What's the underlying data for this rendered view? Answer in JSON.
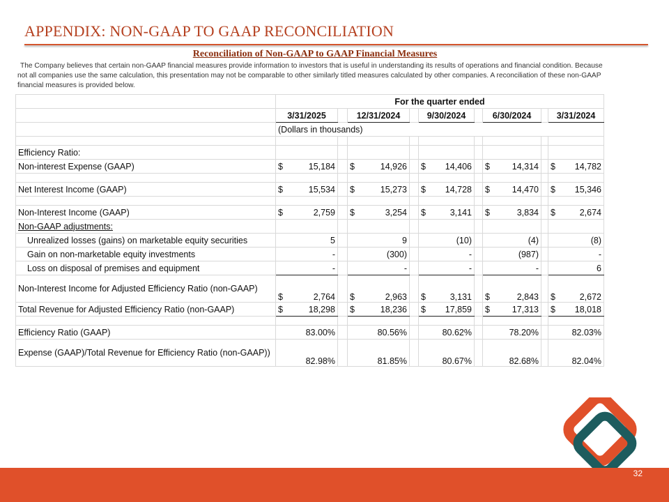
{
  "header": {
    "title": "APPENDIX: NON-GAAP TO GAAP RECONCILIATION"
  },
  "subtitle": "Reconciliation of Non-GAAP to GAAP Financial Measures",
  "intro": "The Company believes that certain non-GAAP financial measures provide information to investors that is useful in understanding its results of operations and financial condition.  Because not all companies use the same calculation, this presentation may not be comparable to other similarly titled measures calculated by other companies.  A reconciliation of these non-GAAP financial measures is provided below.",
  "table": {
    "period_header": "For the quarter ended",
    "columns": [
      "3/31/2025",
      "12/31/2024",
      "9/30/2024",
      "6/30/2024",
      "3/31/2024"
    ],
    "units": "(Dollars in thousands)",
    "rows": [
      {
        "label": "Efficiency Ratio:"
      },
      {
        "label": "Non-interest Expense (GAAP)",
        "currency": "$",
        "values": [
          "15,184",
          "14,926",
          "14,406",
          "14,314",
          "14,782"
        ]
      },
      {
        "label": "Net Interest Income (GAAP)",
        "currency": "$",
        "values": [
          "15,534",
          "15,273",
          "14,728",
          "14,470",
          "15,346"
        ]
      },
      {
        "label": "Non-Interest Income (GAAP)",
        "currency": "$",
        "values": [
          "2,759",
          "3,254",
          "3,141",
          "3,834",
          "2,674"
        ]
      },
      {
        "label": "Non-GAAP adjustments:"
      },
      {
        "label": "Unrealized losses (gains) on marketable equity securities",
        "values": [
          "5",
          "9",
          "(10)",
          "(4)",
          "(8)"
        ]
      },
      {
        "label": "Gain on non-marketable equity investments",
        "values": [
          "-",
          "(300)",
          "-",
          "(987)",
          "-"
        ]
      },
      {
        "label": "Loss on disposal of premises and equipment",
        "values": [
          "-",
          "-",
          "-",
          "-",
          "6"
        ]
      },
      {
        "label": "Non-Interest Income for Adjusted Efficiency Ratio (non-GAAP)",
        "currency": "$",
        "values": [
          "2,764",
          "2,963",
          "3,131",
          "2,843",
          "2,672"
        ]
      },
      {
        "label": "Total Revenue for Adjusted Efficiency Ratio (non-GAAP)",
        "currency": "$",
        "values": [
          "18,298",
          "18,236",
          "17,859",
          "17,313",
          "18,018"
        ]
      },
      {
        "label": "Efficiency Ratio (GAAP)",
        "values": [
          "83.00%",
          "80.56%",
          "80.62%",
          "78.20%",
          "82.03%"
        ]
      },
      {
        "label": "Expense (GAAP)/Total Revenue for Efficiency Ratio (non-GAAP))",
        "values": [
          "82.98%",
          "81.85%",
          "80.67%",
          "82.68%",
          "82.04%"
        ]
      }
    ]
  },
  "page_number": "32"
}
